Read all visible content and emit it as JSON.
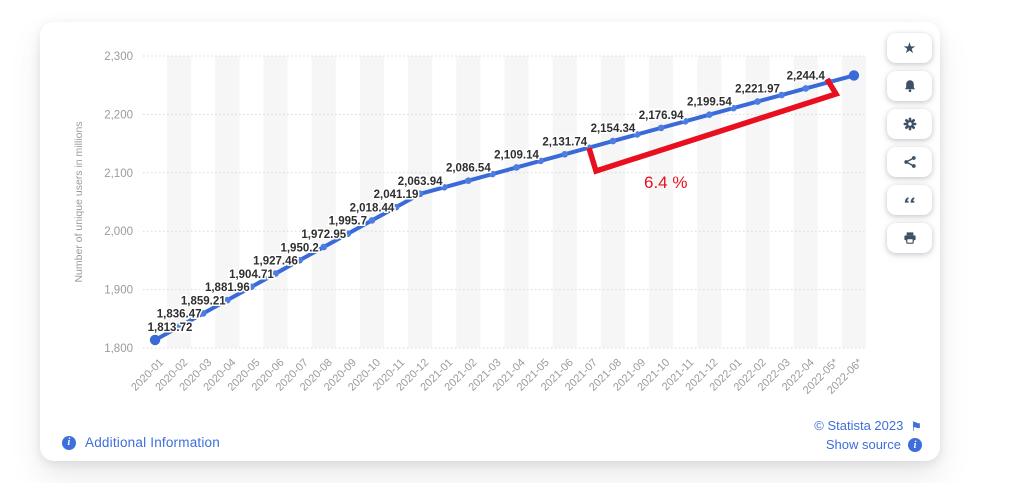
{
  "chart_data": {
    "type": "line",
    "title": "",
    "xlabel": "",
    "ylabel": "Number of unique users in millions",
    "ylim": [
      1800,
      2300
    ],
    "yticks": [
      1800,
      1900,
      2000,
      2100,
      2200,
      2300
    ],
    "grid": "dotted-horizontal, alternating vertical bands",
    "legend": "none",
    "categories": [
      "2020-01",
      "2020-02",
      "2020-03",
      "2020-04",
      "2020-05",
      "2020-06",
      "2020-07",
      "2020-08",
      "2020-09",
      "2020-10",
      "2020-11",
      "2020-12",
      "2021-01",
      "2021-02",
      "2021-03",
      "2021-04",
      "2021-05",
      "2021-06",
      "2021-07",
      "2021-08",
      "2021-09",
      "2021-10",
      "2021-11",
      "2021-12",
      "2022-01",
      "2022-02",
      "2022-03",
      "2022-04",
      "2022-05*",
      "2022-06*"
    ],
    "values": [
      1813.72,
      1836.47,
      1859.21,
      1881.96,
      1904.71,
      1927.46,
      1950.2,
      1972.95,
      1995.7,
      2018.44,
      2041.19,
      2063.94,
      2075.24,
      2086.54,
      2097.84,
      2109.14,
      2120.44,
      2131.74,
      2143.04,
      2154.34,
      2165.64,
      2176.94,
      2188.24,
      2199.54,
      2210.76,
      2221.97,
      2233.19,
      2244.4,
      2255.6,
      2266.8
    ],
    "point_labels": [
      "1,813.72",
      "1,836.47",
      "1,859.21",
      "1,881.96",
      "1,904.71",
      "1,927.46",
      "1,950.2",
      "1,972.95",
      "1,995.7",
      "2,018.44",
      "2,041.19",
      "2,063.94",
      null,
      "2,086.54",
      null,
      "2,109.14",
      null,
      "2,131.74",
      null,
      "2,154.34",
      null,
      "2,176.94",
      null,
      "2,199.54",
      null,
      "2,221.97",
      null,
      "2,244.4",
      null,
      null
    ],
    "line_color": "#3a6ad8",
    "marker_color": "#4d7de0",
    "stripe_color": "#f6f6f6",
    "grid_color": "#d9d9d9",
    "axis_text_color": "#9b9b9b",
    "label_text_color": "#2f2f2f",
    "annotation": {
      "text": "6.4 %",
      "color": "#e8101f"
    }
  },
  "actions": {
    "items": [
      "favorite",
      "notifications",
      "settings",
      "share",
      "cite",
      "print"
    ]
  },
  "icons": {
    "star_glyph": "★",
    "flag_glyph": "⚑",
    "info_glyph": "i"
  },
  "footer": {
    "additional_information": "Additional Information",
    "copyright": "© Statista 2023",
    "show_source": "Show source"
  },
  "colors": {
    "link": "#3d6edb",
    "icon": "#3e5067",
    "card_bg": "#ffffff"
  }
}
